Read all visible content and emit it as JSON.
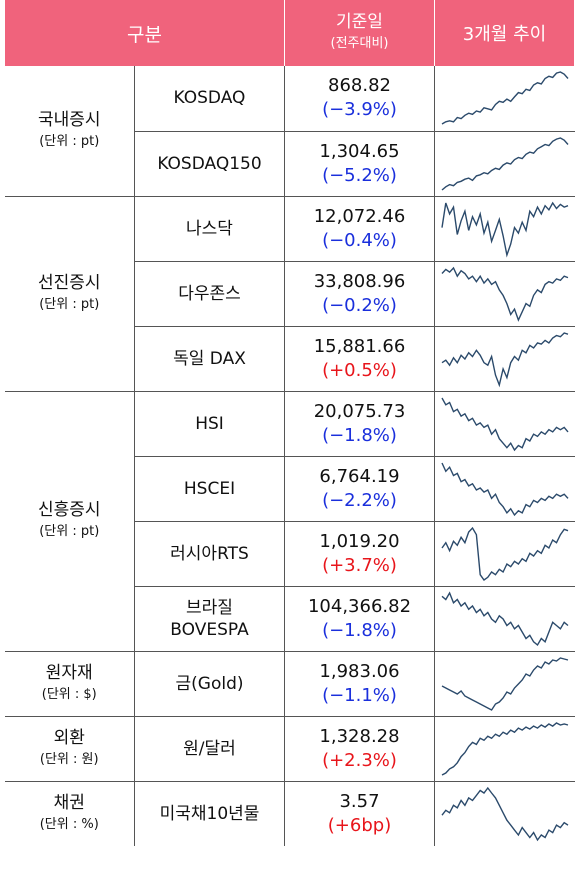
{
  "header": {
    "category": "구분",
    "value": "기준일",
    "value_sub": "(전주대비)",
    "trend": "3개월 추이"
  },
  "colors": {
    "header_bg": "#f0637c",
    "down": "#1a2fdc",
    "up": "#e8151b",
    "sparkline": "#2b4a6b"
  },
  "groups": [
    {
      "name": "국내증시",
      "unit": "(단위 : pt)",
      "items": [
        {
          "name": "KOSDAQ",
          "value": "868.82",
          "change": "(−3.9%)",
          "dir": "down"
        },
        {
          "name": "KOSDAQ150",
          "value": "1,304.65",
          "change": "(−5.2%)",
          "dir": "down"
        }
      ]
    },
    {
      "name": "선진증시",
      "unit": "(단위 : pt)",
      "items": [
        {
          "name": "나스닥",
          "value": "12,072.46",
          "change": "(−0.4%)",
          "dir": "down"
        },
        {
          "name": "다우존스",
          "value": "33,808.96",
          "change": "(−0.2%)",
          "dir": "down"
        },
        {
          "name": "독일 DAX",
          "value": "15,881.66",
          "change": "(+0.5%)",
          "dir": "up"
        }
      ]
    },
    {
      "name": "신흥증시",
      "unit": "(단위 : pt)",
      "items": [
        {
          "name": "HSI",
          "value": "20,075.73",
          "change": "(−1.8%)",
          "dir": "down"
        },
        {
          "name": "HSCEI",
          "value": "6,764.19",
          "change": "(−2.2%)",
          "dir": "down"
        },
        {
          "name": "러시아RTS",
          "value": "1,019.20",
          "change": "(+3.7%)",
          "dir": "up"
        },
        {
          "name": "브라질\nBOVESPA",
          "value": "104,366.82",
          "change": "(−1.8%)",
          "dir": "down"
        }
      ]
    },
    {
      "name": "원자재",
      "unit": "(단위 : $)",
      "items": [
        {
          "name": "금(Gold)",
          "value": "1,983.06",
          "change": "(−1.1%)",
          "dir": "down"
        }
      ]
    },
    {
      "name": "외환",
      "unit": "(단위 : 원)",
      "items": [
        {
          "name": "원/달러",
          "value": "1,328.28",
          "change": "(+2.3%)",
          "dir": "up"
        }
      ]
    },
    {
      "name": "채권",
      "unit": "(단위 : %)",
      "items": [
        {
          "name": "미국채10년물",
          "value": "3.57",
          "change": "(+6bp)",
          "dir": "up"
        }
      ]
    }
  ],
  "chart_data": [
    {
      "type": "line",
      "series": [
        {
          "values": [
            12,
            14,
            15,
            14,
            18,
            17,
            20,
            22,
            21,
            24,
            23,
            27,
            26,
            25,
            30,
            33,
            32,
            35,
            33,
            37,
            41,
            40,
            44,
            43,
            48,
            50,
            49,
            54,
            56,
            55,
            59,
            60,
            58,
            54
          ]
        }
      ]
    },
    {
      "type": "line",
      "series": [
        {
          "values": [
            10,
            13,
            15,
            14,
            17,
            18,
            20,
            21,
            19,
            23,
            24,
            26,
            25,
            28,
            30,
            29,
            33,
            35,
            34,
            38,
            40,
            39,
            43,
            45,
            44,
            48,
            50,
            52,
            51,
            55,
            57,
            58,
            56,
            52
          ]
        }
      ]
    },
    {
      "type": "line",
      "series": [
        {
          "values": [
            40,
            58,
            50,
            55,
            35,
            45,
            52,
            38,
            48,
            42,
            50,
            36,
            44,
            30,
            38,
            46,
            34,
            20,
            28,
            40,
            36,
            44,
            38,
            52,
            48,
            55,
            50,
            56,
            53,
            58,
            54,
            57,
            55,
            56
          ]
        }
      ]
    },
    {
      "type": "line",
      "series": [
        {
          "values": [
            52,
            55,
            53,
            56,
            50,
            54,
            52,
            48,
            50,
            46,
            50,
            45,
            48,
            44,
            46,
            40,
            36,
            30,
            22,
            26,
            18,
            24,
            30,
            28,
            36,
            40,
            38,
            44,
            46,
            45,
            48,
            47,
            50,
            49
          ]
        }
      ]
    },
    {
      "type": "line",
      "series": [
        {
          "values": [
            30,
            32,
            28,
            34,
            30,
            36,
            33,
            38,
            35,
            40,
            36,
            30,
            28,
            35,
            20,
            12,
            25,
            18,
            30,
            35,
            32,
            40,
            38,
            44,
            42,
            46,
            45,
            48,
            46,
            50,
            52,
            51,
            54,
            53
          ]
        }
      ]
    },
    {
      "type": "line",
      "series": [
        {
          "values": [
            58,
            55,
            56,
            52,
            53,
            50,
            51,
            48,
            49,
            46,
            47,
            45,
            46,
            42,
            44,
            40,
            38,
            36,
            38,
            35,
            37,
            36,
            40,
            39,
            42,
            41,
            43,
            42,
            44,
            43,
            45,
            44,
            45,
            43
          ]
        }
      ]
    },
    {
      "type": "line",
      "series": [
        {
          "values": [
            58,
            54,
            56,
            52,
            53,
            49,
            50,
            47,
            48,
            45,
            46,
            44,
            45,
            41,
            43,
            39,
            37,
            34,
            36,
            33,
            35,
            34,
            38,
            37,
            40,
            39,
            41,
            40,
            42,
            41,
            43,
            42,
            43,
            41
          ]
        }
      ]
    },
    {
      "type": "line",
      "series": [
        {
          "values": [
            40,
            44,
            38,
            45,
            42,
            48,
            44,
            52,
            55,
            50,
            20,
            16,
            18,
            22,
            20,
            24,
            22,
            28,
            26,
            30,
            28,
            32,
            30,
            36,
            34,
            38,
            36,
            42,
            40,
            46,
            44,
            50,
            54,
            53
          ]
        }
      ]
    },
    {
      "type": "line",
      "series": [
        {
          "values": [
            52,
            50,
            54,
            48,
            50,
            46,
            48,
            44,
            46,
            42,
            44,
            40,
            42,
            38,
            36,
            40,
            38,
            34,
            36,
            32,
            34,
            30,
            26,
            28,
            24,
            22,
            26,
            24,
            30,
            36,
            34,
            32,
            36,
            34
          ]
        }
      ]
    },
    {
      "type": "line",
      "series": [
        {
          "values": [
            30,
            28,
            26,
            24,
            22,
            25,
            20,
            18,
            16,
            14,
            12,
            10,
            8,
            6,
            12,
            14,
            18,
            24,
            22,
            28,
            32,
            36,
            42,
            40,
            46,
            50,
            48,
            54,
            52,
            56,
            55,
            58,
            57,
            56
          ]
        }
      ]
    },
    {
      "type": "line",
      "series": [
        {
          "values": [
            8,
            10,
            14,
            16,
            20,
            26,
            30,
            36,
            40,
            38,
            44,
            42,
            46,
            44,
            48,
            46,
            50,
            48,
            52,
            50,
            54,
            52,
            55,
            53,
            56,
            54,
            57,
            55,
            58,
            56,
            59,
            57,
            58,
            57
          ]
        }
      ]
    },
    {
      "type": "line",
      "series": [
        {
          "values": [
            38,
            42,
            40,
            46,
            44,
            50,
            46,
            52,
            50,
            54,
            58,
            56,
            60,
            56,
            52,
            46,
            40,
            34,
            30,
            26,
            22,
            28,
            24,
            20,
            24,
            18,
            22,
            20,
            26,
            24,
            30,
            28,
            32,
            30
          ]
        }
      ]
    }
  ]
}
